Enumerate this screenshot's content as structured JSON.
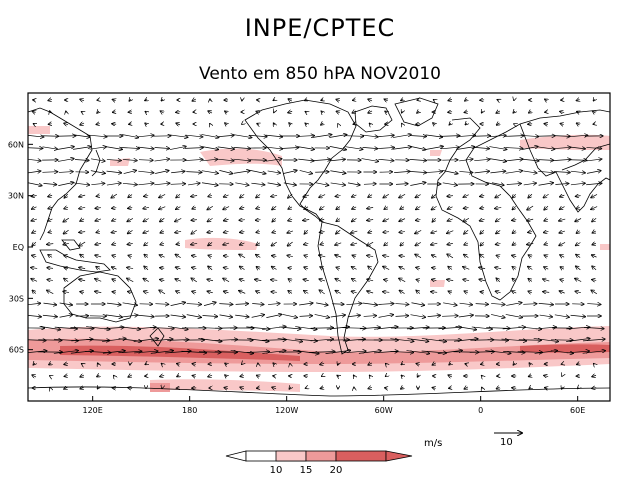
{
  "header": {
    "agency": "INPE/CPTEC",
    "subtitle": "Vento em 850 hPA NOV2010"
  },
  "map": {
    "lat_labels": [
      "60N",
      "30N",
      "EQ",
      "30S",
      "60S"
    ],
    "lon_labels": [
      "120E",
      "180",
      "120W",
      "60W",
      "0",
      "60E"
    ],
    "lat_values": [
      60,
      30,
      0,
      -30,
      -60
    ],
    "lon_values": [
      120,
      180,
      240,
      300,
      360,
      420
    ]
  },
  "legend": {
    "ticks": [
      "10",
      "15",
      "20"
    ],
    "units": "m/s",
    "ref_vector": "10",
    "colors": [
      "#ffffff",
      "#f9c8c8",
      "#ee9a9a",
      "#d95f5f"
    ]
  }
}
